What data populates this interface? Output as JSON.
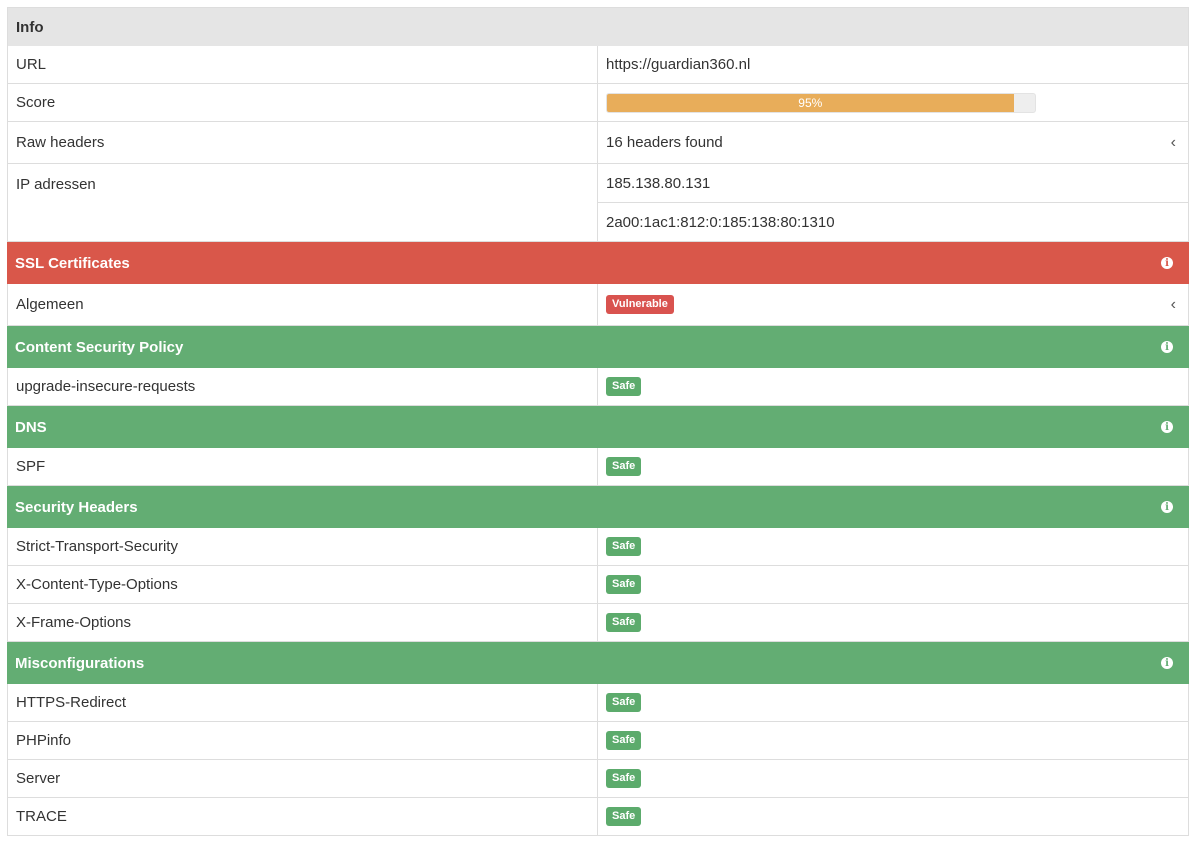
{
  "info": {
    "title": "Info",
    "url_label": "URL",
    "url_value": "https://guardian360.nl",
    "score_label": "Score",
    "score_text": "95%",
    "score_value": 0.95,
    "raw_headers_label": "Raw headers",
    "raw_headers_value": "16 headers found",
    "ip_label": "IP adressen",
    "ip_values": [
      "185.138.80.131",
      "2a00:1ac1:812:0:185:138:80:1310"
    ]
  },
  "colors": {
    "vulnerable": "#d9574a",
    "safe": "#63ad73",
    "progress": "#e8ad5a"
  },
  "sections": [
    {
      "title": "SSL Certificates",
      "status": "red",
      "rows": [
        {
          "label": "Algemeen",
          "badge": "Vulnerable",
          "kind": "vuln",
          "expandable": true
        }
      ]
    },
    {
      "title": "Content Security Policy",
      "status": "green",
      "rows": [
        {
          "label": "upgrade-insecure-requests",
          "badge": "Safe",
          "kind": "safe"
        }
      ]
    },
    {
      "title": "DNS",
      "status": "green",
      "rows": [
        {
          "label": "SPF",
          "badge": "Safe",
          "kind": "safe"
        }
      ]
    },
    {
      "title": "Security Headers",
      "status": "green",
      "rows": [
        {
          "label": "Strict-Transport-Security",
          "badge": "Safe",
          "kind": "safe"
        },
        {
          "label": "X-Content-Type-Options",
          "badge": "Safe",
          "kind": "safe"
        },
        {
          "label": "X-Frame-Options",
          "badge": "Safe",
          "kind": "safe"
        }
      ]
    },
    {
      "title": "Misconfigurations",
      "status": "green",
      "rows": [
        {
          "label": "HTTPS-Redirect",
          "badge": "Safe",
          "kind": "safe"
        },
        {
          "label": "PHPinfo",
          "badge": "Safe",
          "kind": "safe"
        },
        {
          "label": "Server",
          "badge": "Safe",
          "kind": "safe"
        },
        {
          "label": "TRACE",
          "badge": "Safe",
          "kind": "safe"
        }
      ]
    }
  ]
}
